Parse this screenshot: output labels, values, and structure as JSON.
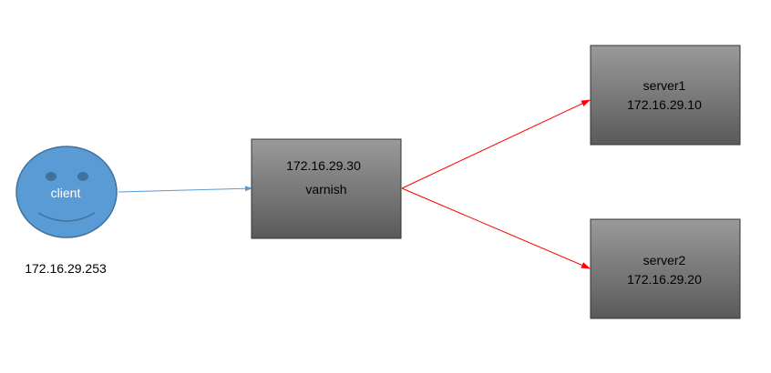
{
  "client": {
    "label": "client",
    "ip": "172.16.29.253",
    "face_color": "#5b9bd5",
    "face_stroke": "#41719c",
    "label_color": "#ffffff"
  },
  "varnish": {
    "ip": "172.16.29.30",
    "name": "varnish"
  },
  "servers": [
    {
      "name": "server1",
      "ip": "172.16.29.10"
    },
    {
      "name": "server2",
      "ip": "172.16.29.20"
    }
  ],
  "colors": {
    "box_gradient_top": "#9a9a9a",
    "box_gradient_bottom": "#5a5a5a",
    "box_border": "#333333",
    "text": "#000000",
    "client_arrow": "#5b9bd5",
    "server_arrow": "#ff0000"
  }
}
